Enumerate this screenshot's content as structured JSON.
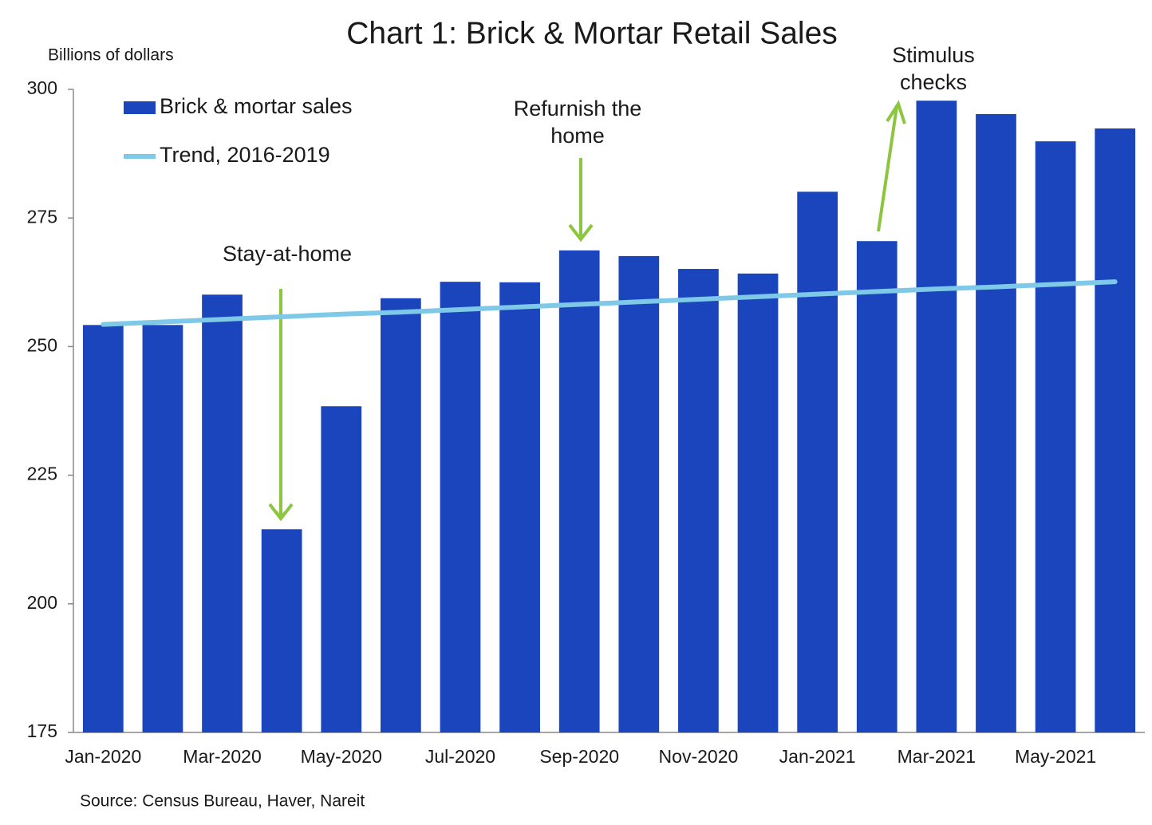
{
  "chart_data": {
    "type": "bar",
    "title": "Chart 1: Brick & Mortar Retail Sales",
    "y_axis_label": "Billions of dollars",
    "source": "Source: Census Bureau, Haver, Nareit",
    "categories": [
      "Jan-2020",
      null,
      "Mar-2020",
      null,
      "May-2020",
      null,
      "Jul-2020",
      null,
      "Sep-2020",
      null,
      "Nov-2020",
      null,
      "Jan-2021",
      null,
      "Mar-2021",
      null,
      "May-2021",
      null
    ],
    "series": [
      {
        "name": "Brick & mortar sales",
        "color": "#1a45bc",
        "type": "bar",
        "values": [
          254.2,
          254.2,
          260.1,
          214.5,
          238.4,
          259.4,
          262.6,
          262.5,
          268.7,
          267.6,
          265.1,
          264.2,
          280.1,
          270.5,
          297.8,
          295.2,
          289.9,
          292.4
        ]
      },
      {
        "name": "Trend, 2016-2019",
        "color": "#7ec8e8",
        "type": "line",
        "values": [
          254.3,
          254.8,
          255.3,
          255.8,
          256.3,
          256.7,
          257.2,
          257.7,
          258.2,
          258.7,
          259.2,
          259.7,
          260.2,
          260.7,
          261.2,
          261.6,
          262.1,
          262.6
        ]
      }
    ],
    "ylim": [
      175,
      300
    ],
    "yticks": [
      175,
      200,
      225,
      250,
      275,
      300
    ],
    "legend": "top-left",
    "annotations": [
      {
        "lines": [
          "Stay-at-home"
        ]
      },
      {
        "lines": [
          "Refurnish the",
          "home"
        ]
      },
      {
        "lines": [
          "Stimulus",
          "checks"
        ]
      }
    ]
  }
}
